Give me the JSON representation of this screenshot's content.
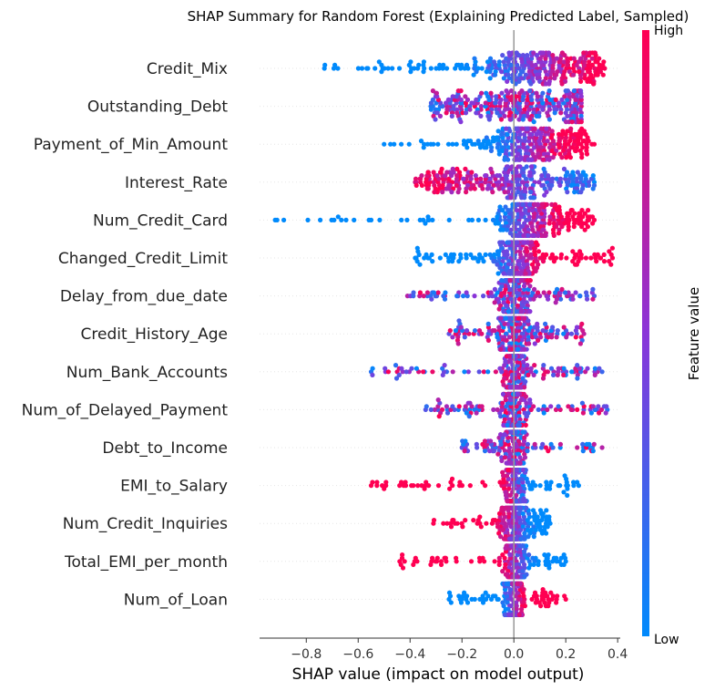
{
  "chart_data": {
    "type": "scatter",
    "title": "SHAP Summary for Random Forest (Explaining Predicted Label, Sampled)",
    "xlabel": "SHAP value (impact on model output)",
    "xlim": [
      -0.98,
      0.41
    ],
    "xticks": [
      -0.8,
      -0.6,
      -0.4,
      -0.2,
      0.0,
      0.2,
      0.4
    ],
    "xtick_labels": [
      "−0.8",
      "−0.6",
      "−0.4",
      "−0.2",
      "0.0",
      "0.2",
      "0.4"
    ],
    "features": [
      {
        "name": "Credit_Mix",
        "min": -0.73,
        "max": 0.35,
        "core": [
          -0.08,
          0.25
        ],
        "low_side": "negative"
      },
      {
        "name": "Outstanding_Debt",
        "min": -0.32,
        "max": 0.26,
        "core": [
          -0.2,
          0.2
        ],
        "low_side": "mixed"
      },
      {
        "name": "Payment_of_Min_Amount",
        "min": -0.5,
        "max": 0.31,
        "core": [
          -0.05,
          0.17
        ],
        "low_side": "negative"
      },
      {
        "name": "Interest_Rate",
        "min": -0.38,
        "max": 0.31,
        "core": [
          -0.25,
          0.2
        ],
        "low_side": "positive"
      },
      {
        "name": "Num_Credit_Card",
        "min": -0.92,
        "max": 0.31,
        "core": [
          -0.03,
          0.15
        ],
        "low_side": "negative"
      },
      {
        "name": "Changed_Credit_Limit",
        "min": -0.38,
        "max": 0.38,
        "core": [
          -0.05,
          0.08
        ],
        "low_side": "negative"
      },
      {
        "name": "Delay_from_due_date",
        "min": -0.41,
        "max": 0.31,
        "core": [
          -0.05,
          0.06
        ],
        "low_side": "mixed"
      },
      {
        "name": "Credit_History_Age",
        "min": -0.25,
        "max": 0.27,
        "core": [
          -0.05,
          0.06
        ],
        "low_side": "mixed"
      },
      {
        "name": "Num_Bank_Accounts",
        "min": -0.55,
        "max": 0.34,
        "core": [
          -0.03,
          0.04
        ],
        "low_side": "mixed"
      },
      {
        "name": "Num_of_Delayed_Payment",
        "min": -0.34,
        "max": 0.36,
        "core": [
          -0.03,
          0.04
        ],
        "low_side": "mixed"
      },
      {
        "name": "Debt_to_Income",
        "min": -0.2,
        "max": 0.34,
        "core": [
          -0.03,
          0.04
        ],
        "low_side": "mixed"
      },
      {
        "name": "EMI_to_Salary",
        "min": -0.55,
        "max": 0.25,
        "core": [
          -0.03,
          0.04
        ],
        "low_side": "positive"
      },
      {
        "name": "Num_Credit_Inquiries",
        "min": -0.31,
        "max": 0.14,
        "core": [
          -0.04,
          0.04
        ],
        "low_side": "positive"
      },
      {
        "name": "Total_EMI_per_month",
        "min": -0.44,
        "max": 0.2,
        "core": [
          -0.03,
          0.04
        ],
        "low_side": "positive"
      },
      {
        "name": "Num_of_Loan",
        "min": -0.25,
        "max": 0.2,
        "core": [
          -0.03,
          0.03
        ],
        "low_side": "negative"
      }
    ],
    "colorbar": {
      "label": "Feature value",
      "high": "High",
      "low": "Low",
      "high_color": "#ff0052",
      "mid_color": "#8a35d8",
      "low_color": "#008afc"
    },
    "grid": false,
    "legend": "colorbar-right"
  }
}
